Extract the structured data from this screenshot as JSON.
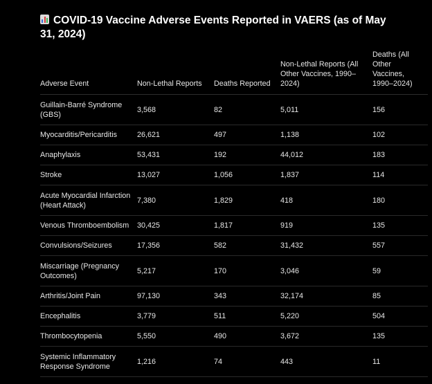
{
  "title": "COVID-19 Vaccine Adverse Events Reported in VAERS (as of May 31, 2024)",
  "title_icon": "bar-chart-icon",
  "columns": [
    "Adverse Event",
    "Non-Lethal Reports",
    "Deaths Reported",
    "Non-Lethal Reports (All Other Vaccines, 1990–2024)",
    "Deaths (All Other Vaccines, 1990–2024)"
  ],
  "rows": [
    {
      "event": "Guillain-Barré Syndrome (GBS)",
      "non_lethal": "3,568",
      "deaths": "82",
      "other_non_lethal": "5,011",
      "other_deaths": "156"
    },
    {
      "event": "Myocarditis/Pericarditis",
      "non_lethal": "26,621",
      "deaths": "497",
      "other_non_lethal": "1,138",
      "other_deaths": "102"
    },
    {
      "event": "Anaphylaxis",
      "non_lethal": "53,431",
      "deaths": "192",
      "other_non_lethal": "44,012",
      "other_deaths": "183"
    },
    {
      "event": "Stroke",
      "non_lethal": "13,027",
      "deaths": "1,056",
      "other_non_lethal": "1,837",
      "other_deaths": "114"
    },
    {
      "event": "Acute Myocardial Infarction (Heart Attack)",
      "non_lethal": "7,380",
      "deaths": "1,829",
      "other_non_lethal": "418",
      "other_deaths": "180"
    },
    {
      "event": "Venous Thromboembolism",
      "non_lethal": "30,425",
      "deaths": "1,817",
      "other_non_lethal": "919",
      "other_deaths": "135"
    },
    {
      "event": "Convulsions/Seizures",
      "non_lethal": "17,356",
      "deaths": "582",
      "other_non_lethal": "31,432",
      "other_deaths": "557"
    },
    {
      "event": "Miscarriage (Pregnancy Outcomes)",
      "non_lethal": "5,217",
      "deaths": "170",
      "other_non_lethal": "3,046",
      "other_deaths": "59"
    },
    {
      "event": "Arthritis/Joint Pain",
      "non_lethal": "97,130",
      "deaths": "343",
      "other_non_lethal": "32,174",
      "other_deaths": "85"
    },
    {
      "event": "Encephalitis",
      "non_lethal": "3,779",
      "deaths": "511",
      "other_non_lethal": "5,220",
      "other_deaths": "504"
    },
    {
      "event": "Thrombocytopenia",
      "non_lethal": "5,550",
      "deaths": "490",
      "other_non_lethal": "3,672",
      "other_deaths": "135"
    },
    {
      "event": "Systemic Inflammatory Response Syndrome",
      "non_lethal": "1,216",
      "deaths": "74",
      "other_non_lethal": "443",
      "other_deaths": "11"
    }
  ]
}
